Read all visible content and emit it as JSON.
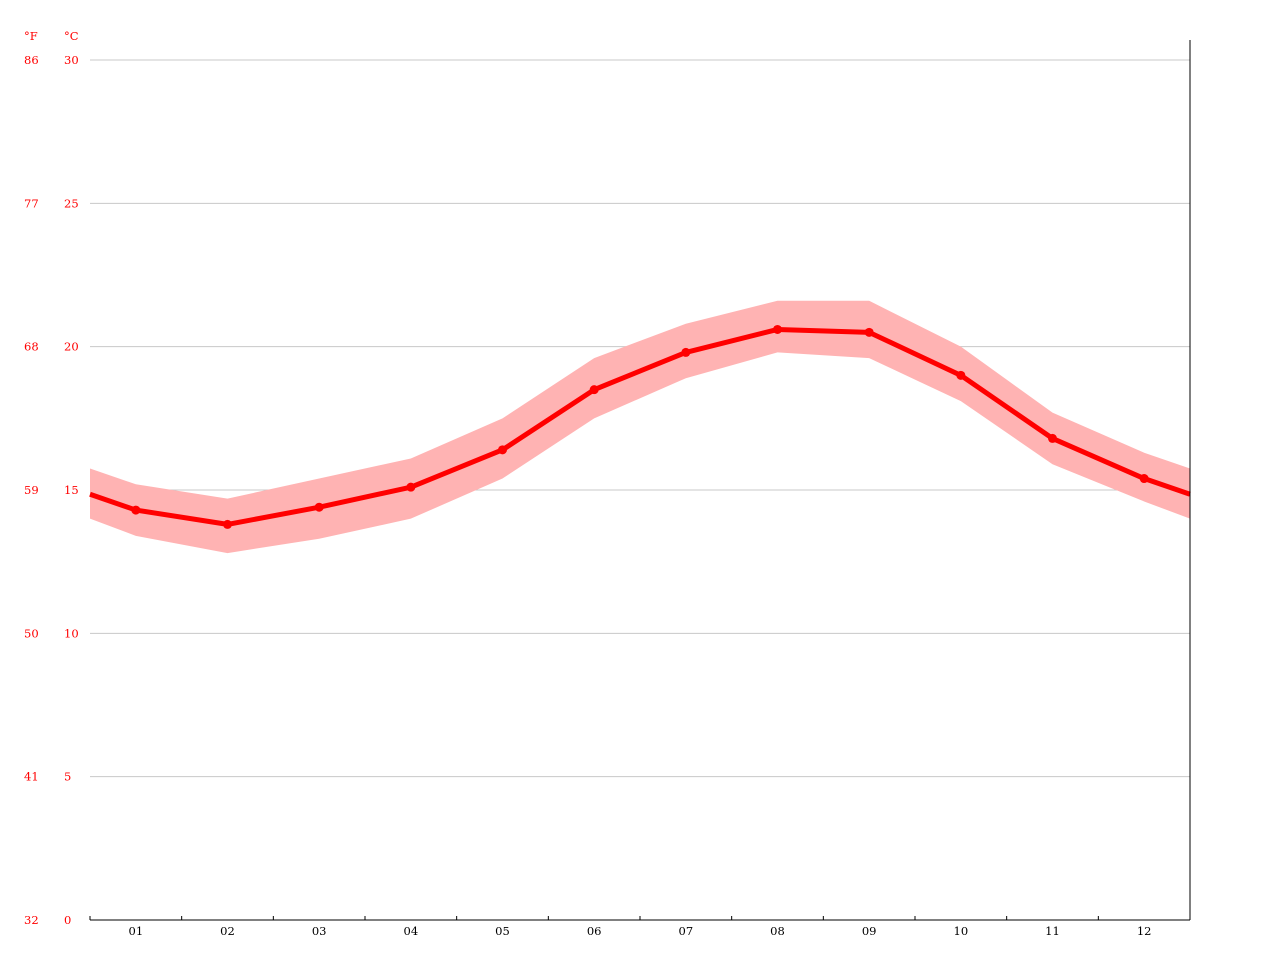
{
  "chart_data": {
    "type": "line",
    "title": "",
    "xlabel": "",
    "ylabel": "",
    "unit_f": "°F",
    "unit_c": "°C",
    "ylim": [
      0,
      30
    ],
    "grid": true,
    "categories": [
      "01",
      "02",
      "03",
      "04",
      "05",
      "06",
      "07",
      "08",
      "09",
      "10",
      "11",
      "12"
    ],
    "y_ticks_c": [
      0,
      5,
      10,
      15,
      20,
      25,
      30
    ],
    "y_ticks_f": [
      32,
      41,
      50,
      59,
      68,
      77,
      86
    ],
    "series": [
      {
        "values": [
          14.3,
          13.8,
          14.4,
          15.1,
          16.4,
          18.5,
          19.8,
          20.6,
          20.5,
          19.0,
          16.8,
          15.4
        ],
        "band_upper": [
          15.2,
          14.7,
          15.4,
          16.1,
          17.5,
          19.6,
          20.8,
          21.6,
          21.6,
          20.0,
          17.7,
          16.3
        ],
        "band_lower": [
          13.4,
          12.8,
          13.3,
          14.0,
          15.4,
          17.5,
          18.9,
          19.8,
          19.6,
          18.1,
          15.9,
          14.6
        ],
        "line_color": "#ff0000",
        "band_color": "#ffb3b3"
      }
    ],
    "axis_label_color": "#ff0000"
  }
}
